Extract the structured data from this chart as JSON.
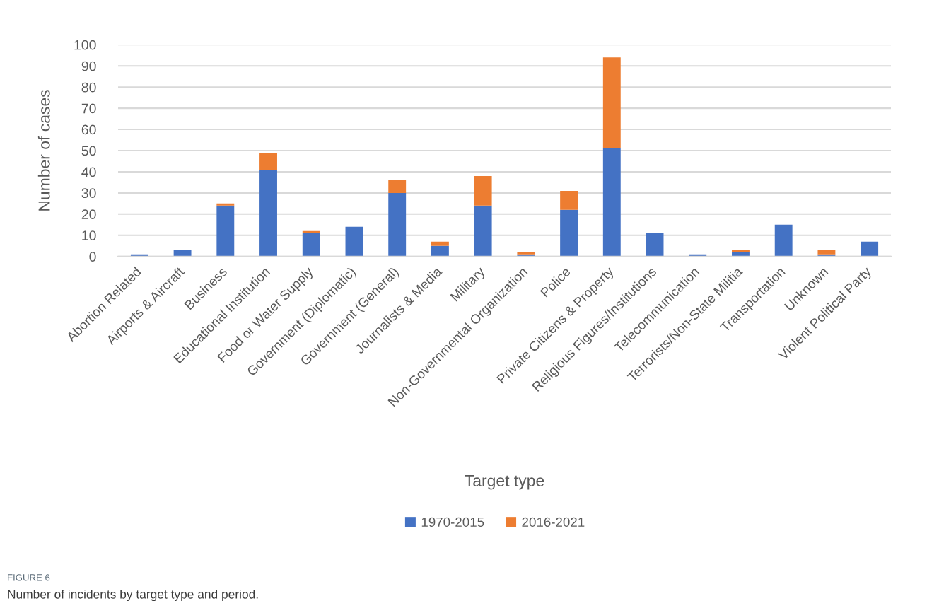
{
  "chart_data": {
    "type": "bar",
    "stacked": true,
    "xlabel": "Target type",
    "ylabel": "Number of cases",
    "categories": [
      "Abortion Related",
      "Airports & Aircraft",
      "Business",
      "Educational Institution",
      "Food or Water Supply",
      "Government (Diplomatic)",
      "Government (General)",
      "Journalists & Media",
      "Military",
      "Non-Governmental Organization",
      "Police",
      "Private Citizens & Property",
      "Religious Figures/Institutions",
      "Telecommunication",
      "Terrorists/Non-State Militia",
      "Transportation",
      "Unknown",
      "Violent Political Party"
    ],
    "series": [
      {
        "name": "1970-2015",
        "color": "#4472c4",
        "values": [
          1,
          3,
          24,
          41,
          11,
          14,
          30,
          5,
          24,
          1,
          22,
          51,
          11,
          1,
          2,
          15,
          1,
          7
        ]
      },
      {
        "name": "2016-2021",
        "color": "#ed7d31",
        "values": [
          0,
          0,
          1,
          8,
          1,
          0,
          6,
          2,
          14,
          1,
          9,
          43,
          0,
          0,
          1,
          0,
          2,
          0
        ]
      }
    ],
    "ylim": [
      0,
      100
    ],
    "yticks": [
      0,
      10,
      20,
      30,
      40,
      50,
      60,
      70,
      80,
      90,
      100
    ],
    "grid": "y",
    "legend": "bottom",
    "annotations": [
      "FIGURE 6",
      "Number of incidents by target type and period."
    ]
  }
}
